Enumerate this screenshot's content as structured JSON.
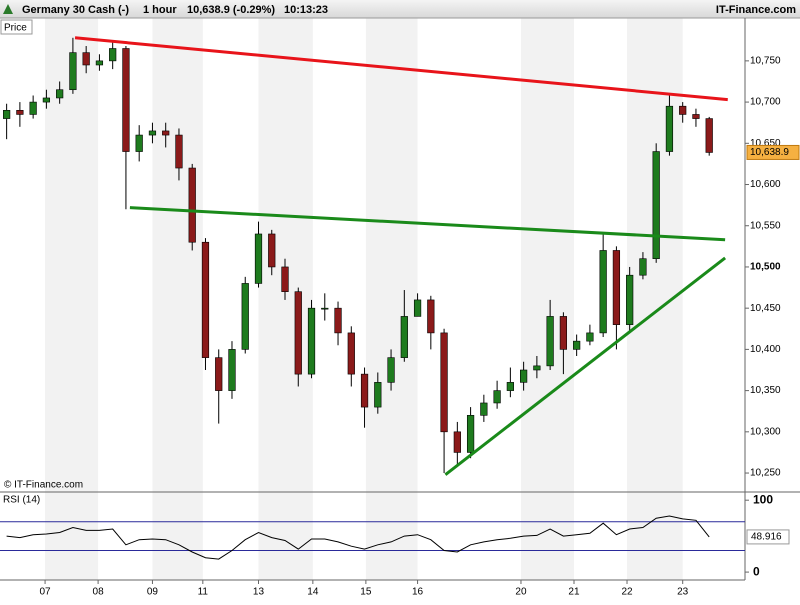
{
  "header": {
    "instrument": "Germany 30 Cash (-)",
    "interval": "1 hour",
    "last": "10,638.9 (-0.29%)",
    "time": "10:13:23",
    "brand": "IT-Finance.com"
  },
  "chart_data": [
    {
      "type": "candlestick",
      "label": "Price",
      "copyright": "© IT-Finance.com",
      "open": [
        10680,
        10690,
        10685,
        10700,
        10705,
        10715,
        10760,
        10745,
        10750,
        10765,
        10640,
        10660,
        10665,
        10660,
        10620,
        10530,
        10390,
        10350,
        10400,
        10480,
        10540,
        10500,
        10470,
        10370,
        10450,
        10450,
        10420,
        10370,
        10330,
        10360,
        10390,
        10440,
        10460,
        10420,
        10300,
        10275,
        10320,
        10335,
        10350,
        10360,
        10375,
        10380,
        10440,
        10400,
        10410,
        10420,
        10520,
        10430,
        10490,
        10510,
        10640,
        10695,
        10685,
        10680
      ],
      "high": [
        10698,
        10700,
        10708,
        10715,
        10725,
        10778,
        10768,
        10758,
        10775,
        10768,
        10672,
        10675,
        10675,
        10668,
        10625,
        10535,
        10400,
        10410,
        10488,
        10555,
        10545,
        10510,
        10475,
        10460,
        10468,
        10458,
        10428,
        10378,
        10372,
        10400,
        10472,
        10468,
        10465,
        10425,
        10312,
        10330,
        10345,
        10362,
        10378,
        10385,
        10392,
        10460,
        10445,
        10418,
        10430,
        10540,
        10525,
        10500,
        10518,
        10650,
        10710,
        10700,
        10692,
        10682
      ],
      "low": [
        10655,
        10670,
        10680,
        10692,
        10698,
        10710,
        10735,
        10738,
        10740,
        10570,
        10628,
        10650,
        10645,
        10605,
        10520,
        10375,
        10310,
        10340,
        10395,
        10475,
        10490,
        10460,
        10355,
        10365,
        10435,
        10405,
        10355,
        10305,
        10322,
        10350,
        10385,
        10440,
        10400,
        10250,
        10258,
        10268,
        10312,
        10328,
        10342,
        10350,
        10365,
        10375,
        10370,
        10392,
        10405,
        10415,
        10400,
        10420,
        10485,
        10505,
        10635,
        10675,
        10670,
        10635
      ],
      "close": [
        10690,
        10685,
        10700,
        10705,
        10715,
        10760,
        10745,
        10750,
        10765,
        10640,
        10660,
        10665,
        10660,
        10620,
        10530,
        10390,
        10350,
        10400,
        10480,
        10540,
        10500,
        10470,
        10370,
        10450,
        10450,
        10420,
        10370,
        10330,
        10360,
        10390,
        10440,
        10460,
        10420,
        10300,
        10275,
        10320,
        10335,
        10350,
        10360,
        10375,
        10380,
        10440,
        10400,
        10410,
        10420,
        10520,
        10430,
        10490,
        10510,
        10640,
        10695,
        10685,
        10680,
        10638.9
      ],
      "last_price_label": "10,638.9",
      "up_color": "#1e7b1e",
      "down_color": "#8b1a1a",
      "xlim": [
        -0.5,
        55.7
      ],
      "ylim": [
        10227,
        10802
      ],
      "xticks": [
        {
          "value": 2.9,
          "label": "07"
        },
        {
          "value": 6.9,
          "label": "08"
        },
        {
          "value": 11.0,
          "label": "09"
        },
        {
          "value": 14.8,
          "label": "11"
        },
        {
          "value": 19.0,
          "label": "13"
        },
        {
          "value": 23.1,
          "label": "14"
        },
        {
          "value": 27.1,
          "label": "15"
        },
        {
          "value": 31.0,
          "label": "16"
        },
        {
          "value": 38.8,
          "label": "20"
        },
        {
          "value": 42.8,
          "label": "21"
        },
        {
          "value": 46.8,
          "label": "22"
        },
        {
          "value": 51.0,
          "label": "23"
        }
      ],
      "yticks": [
        {
          "value": 10250,
          "label": "10,250"
        },
        {
          "value": 10300,
          "label": "10,300"
        },
        {
          "value": 10350,
          "label": "10,350"
        },
        {
          "value": 10400,
          "label": "10,400"
        },
        {
          "value": 10450,
          "label": "10,450"
        },
        {
          "value": 10500,
          "label": "10,500"
        },
        {
          "value": 10550,
          "label": "10,550"
        },
        {
          "value": 10600,
          "label": "10,600"
        },
        {
          "value": 10650,
          "label": "10,650"
        },
        {
          "value": 10700,
          "label": "10,700"
        },
        {
          "value": 10750,
          "label": "10,750"
        }
      ],
      "emphasized_ytick": 10500,
      "trendlines": [
        {
          "color": "#e8141a",
          "x": [
            5.16,
            54.4
          ],
          "values": [
            10778,
            10703
          ]
        },
        {
          "color": "#1a8a1a",
          "x": [
            9.3,
            54.2
          ],
          "values": [
            10572,
            10533
          ]
        },
        {
          "color": "#1a8a1a",
          "x": [
            33.1,
            54.2
          ],
          "values": [
            10248,
            10511
          ]
        }
      ]
    },
    {
      "type": "line",
      "label": "RSI (14)",
      "color": "#000000",
      "values": [
        50,
        48,
        52,
        53,
        55,
        62,
        58,
        58,
        60,
        38,
        45,
        46,
        45,
        38,
        28,
        20,
        18,
        30,
        45,
        55,
        48,
        44,
        32,
        46,
        46,
        42,
        36,
        32,
        38,
        42,
        50,
        52,
        45,
        30,
        28,
        38,
        42,
        45,
        47,
        50,
        51,
        60,
        50,
        52,
        54,
        68,
        52,
        60,
        62,
        75,
        78,
        74,
        72,
        48.916
      ],
      "last_label": "48.916",
      "ylim": [
        -11,
        110
      ],
      "yticks": [
        0,
        100
      ],
      "levels": [
        30,
        70
      ],
      "level_color": "#2a2a9a"
    }
  ]
}
